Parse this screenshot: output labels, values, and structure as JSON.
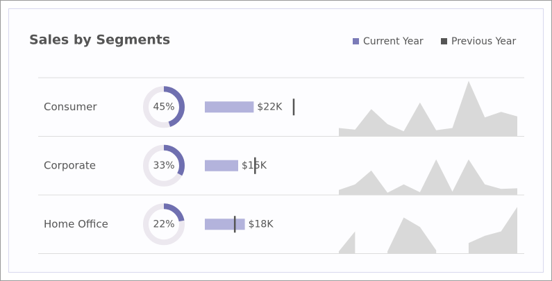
{
  "chart_data": {
    "type": "segment-dashboard",
    "title": "Sales by Segments",
    "legend": [
      {
        "name": "Current Year",
        "color": "#7b7bb8"
      },
      {
        "name": "Previous Year",
        "color": "#555555"
      }
    ],
    "share_color": "#6f6fb0",
    "share_track_color": "#ece8ef",
    "share_lim": [
      0,
      100
    ],
    "bar_color": "#b3b3dc",
    "marker_color": "#555555",
    "bar_xlim": [
      0,
      50000
    ],
    "spark_color": "#d9d9d9",
    "spark_ylim": [
      0,
      100
    ],
    "rows": [
      {
        "name": "Consumer",
        "share": 45,
        "share_label": "45%",
        "current": 22000,
        "current_label": "$22K",
        "previous": 40000,
        "spark": [
          15,
          12,
          49,
          22,
          9,
          61,
          11,
          15,
          100,
          34,
          44,
          36
        ]
      },
      {
        "name": "Corporate",
        "share": 33,
        "share_label": "33%",
        "current": 15000,
        "current_label": "$15K",
        "previous": 22600,
        "spark": [
          9,
          19,
          44,
          4,
          19,
          5,
          64,
          6,
          64,
          19,
          11,
          12
        ]
      },
      {
        "name": "Home Office",
        "share": 22,
        "share_label": "22%",
        "current": 18000,
        "current_label": "$18K",
        "previous": 13500,
        "spark": [
          4,
          40,
          null,
          4,
          65,
          48,
          6,
          null,
          19,
          32,
          40,
          84
        ]
      }
    ]
  }
}
